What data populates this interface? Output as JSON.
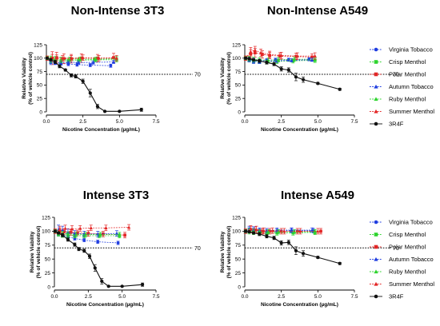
{
  "legend": [
    {
      "name": "Virginia Tobacco",
      "color": "#1f3de0",
      "marker": "circle"
    },
    {
      "name": "Crisp Menthol",
      "color": "#2ed42e",
      "marker": "square"
    },
    {
      "name": "Polar Menthol",
      "color": "#e32626",
      "marker": "square"
    },
    {
      "name": "Autumn Tobacco",
      "color": "#1f3de0",
      "marker": "triangle"
    },
    {
      "name": "Ruby Menthol",
      "color": "#2ed42e",
      "marker": "triangle"
    },
    {
      "name": "Summer Menthol",
      "color": "#e32626",
      "marker": "triangle"
    },
    {
      "name": "3R4F",
      "color": "#111111",
      "marker": "circle"
    }
  ],
  "chart_data": [
    {
      "type": "scatter",
      "title": "Non-Intense 3T3",
      "xlabel": "Nicotine Concentration (µg/mL)",
      "ylabel": [
        "Relative Viability",
        "(% of vehicle control)"
      ],
      "xlim": [
        0,
        7.5
      ],
      "ylim": [
        0,
        125
      ],
      "xticks": [
        "0.0",
        "2.5",
        "5.0",
        "7.5"
      ],
      "yticks": [
        "0",
        "25",
        "50",
        "75",
        "100",
        "125"
      ],
      "reference_line": {
        "y": 70,
        "label": "70"
      },
      "series": [
        {
          "name": "Virginia Tobacco",
          "x": [
            0.05,
            0.3,
            0.6,
            1.0,
            1.5,
            2.1,
            3.0,
            4.4
          ],
          "y": [
            100,
            95,
            91,
            90,
            89,
            88,
            87,
            86
          ],
          "err": [
            3,
            4,
            3,
            3,
            3,
            3,
            3,
            3
          ]
        },
        {
          "name": "Crisp Menthol",
          "x": [
            0.05,
            0.3,
            0.6,
            1.0,
            1.5,
            2.2,
            3.3,
            4.8
          ],
          "y": [
            100,
            98,
            96,
            95,
            95,
            96,
            97,
            97
          ],
          "err": [
            3,
            6,
            5,
            5,
            5,
            4,
            4,
            4
          ]
        },
        {
          "name": "Polar Menthol",
          "x": [
            0.05,
            0.4,
            0.7,
            1.2,
            1.7,
            2.4,
            3.5,
            4.6
          ],
          "y": [
            100,
            100,
            101,
            99,
            99,
            100,
            100,
            101
          ],
          "err": [
            4,
            12,
            10,
            9,
            8,
            8,
            7,
            8
          ]
        },
        {
          "name": "Autumn Tobacco",
          "x": [
            0.05,
            0.3,
            0.6,
            1.0,
            1.5,
            2.2,
            3.2,
            4.6
          ],
          "y": [
            100,
            92,
            92,
            91,
            92,
            92,
            92,
            93
          ],
          "err": [
            3,
            4,
            3,
            3,
            3,
            3,
            3,
            3
          ]
        },
        {
          "name": "Ruby Menthol",
          "x": [
            0.05,
            0.3,
            0.6,
            1.0,
            1.6,
            2.3,
            3.4,
            4.8
          ],
          "y": [
            100,
            97,
            98,
            97,
            98,
            98,
            98,
            99
          ],
          "err": [
            3,
            5,
            5,
            5,
            4,
            4,
            4,
            4
          ]
        },
        {
          "name": "Summer Menthol",
          "x": [
            0.05,
            0.4,
            0.7,
            1.1,
            1.7,
            2.5,
            3.6,
            4.8
          ],
          "y": [
            100,
            101,
            100,
            100,
            100,
            101,
            100,
            100
          ],
          "err": [
            4,
            6,
            6,
            5,
            5,
            5,
            5,
            5
          ]
        },
        {
          "name": "3R4F",
          "x": [
            0.05,
            0.3,
            0.6,
            0.9,
            1.3,
            1.7,
            2.0,
            2.5,
            3.0,
            3.5,
            4.0,
            5.0,
            6.5
          ],
          "y": [
            100,
            97,
            93,
            85,
            78,
            68,
            66,
            57,
            35,
            10,
            1,
            1,
            4
          ],
          "err": [
            2,
            2,
            3,
            3,
            2,
            3,
            3,
            4,
            7,
            4,
            1,
            1,
            3
          ]
        }
      ]
    },
    {
      "type": "scatter",
      "title": "Non-Intense A549",
      "xlabel": "Nicotine Concentration (µg/mL)",
      "ylabel": [
        "Relative Viability",
        "(% of vehicle control)"
      ],
      "xlim": [
        0,
        7.5
      ],
      "ylim": [
        0,
        125
      ],
      "xticks": [
        "0.0",
        "2.5",
        "5.0",
        "7.5"
      ],
      "yticks": [
        "0",
        "25",
        "50",
        "75",
        "100",
        "125"
      ],
      "reference_line": {
        "y": 70,
        "label": "70"
      },
      "series": [
        {
          "name": "Virginia Tobacco",
          "x": [
            0.05,
            0.3,
            0.6,
            1.0,
            1.5,
            2.1,
            3.0,
            4.4
          ],
          "y": [
            100,
            98,
            96,
            95,
            96,
            97,
            97,
            98
          ],
          "err": [
            3,
            4,
            4,
            3,
            3,
            3,
            3,
            3
          ]
        },
        {
          "name": "Crisp Menthol",
          "x": [
            0.05,
            0.3,
            0.6,
            1.0,
            1.5,
            2.2,
            3.3,
            4.8
          ],
          "y": [
            100,
            98,
            95,
            94,
            93,
            94,
            95,
            96
          ],
          "err": [
            3,
            5,
            4,
            4,
            4,
            4,
            4,
            4
          ]
        },
        {
          "name": "Polar Menthol",
          "x": [
            0.05,
            0.4,
            0.7,
            1.2,
            1.7,
            2.4,
            3.5,
            4.6
          ],
          "y": [
            100,
            108,
            110,
            107,
            105,
            104,
            103,
            102
          ],
          "err": [
            4,
            8,
            8,
            7,
            6,
            6,
            6,
            6
          ]
        },
        {
          "name": "Autumn Tobacco",
          "x": [
            0.05,
            0.3,
            0.6,
            1.0,
            1.5,
            2.2,
            3.2,
            4.6
          ],
          "y": [
            100,
            97,
            94,
            93,
            94,
            95,
            96,
            97
          ],
          "err": [
            3,
            4,
            4,
            3,
            3,
            3,
            3,
            3
          ]
        },
        {
          "name": "Ruby Menthol",
          "x": [
            0.05,
            0.3,
            0.6,
            1.0,
            1.6,
            2.3,
            3.4,
            4.8
          ],
          "y": [
            100,
            99,
            98,
            97,
            96,
            97,
            98,
            98
          ],
          "err": [
            3,
            4,
            4,
            4,
            4,
            4,
            4,
            4
          ]
        },
        {
          "name": "Summer Menthol",
          "x": [
            0.05,
            0.4,
            0.7,
            1.1,
            1.7,
            2.5,
            3.6,
            4.8
          ],
          "y": [
            100,
            112,
            115,
            110,
            107,
            105,
            104,
            104
          ],
          "err": [
            4,
            8,
            7,
            7,
            6,
            6,
            6,
            6
          ]
        },
        {
          "name": "3R4F",
          "x": [
            0.05,
            0.3,
            0.6,
            1.0,
            1.5,
            2.0,
            2.5,
            3.0,
            3.5,
            4.0,
            5.0,
            6.5
          ],
          "y": [
            100,
            99,
            97,
            95,
            92,
            89,
            80,
            78,
            65,
            60,
            53,
            42
          ],
          "err": [
            2,
            2,
            2,
            3,
            3,
            3,
            4,
            4,
            7,
            5,
            2,
            2
          ]
        }
      ]
    },
    {
      "type": "scatter",
      "title": "Intense 3T3",
      "xlabel": "Nicotine Concentration (µg/mL)",
      "ylabel": [
        "Relative Viability",
        "(% of vehicle control)"
      ],
      "xlim": [
        0,
        7.5
      ],
      "ylim": [
        0,
        125
      ],
      "xticks": [
        "0.0",
        "2.5",
        "5.0",
        "7.5"
      ],
      "yticks": [
        "0",
        "25",
        "50",
        "75",
        "100",
        "125"
      ],
      "reference_line": {
        "y": 70,
        "label": "70"
      },
      "series": [
        {
          "name": "Virginia Tobacco",
          "x": [
            0.05,
            0.3,
            0.6,
            1.0,
            1.5,
            2.2,
            3.2,
            4.7
          ],
          "y": [
            100,
            95,
            93,
            90,
            87,
            84,
            81,
            79
          ],
          "err": [
            3,
            3,
            3,
            3,
            3,
            3,
            3,
            3
          ]
        },
        {
          "name": "Crisp Menthol",
          "x": [
            0.05,
            0.3,
            0.6,
            1.0,
            1.5,
            2.2,
            3.3,
            4.8
          ],
          "y": [
            100,
            95,
            93,
            93,
            92,
            92,
            92,
            92
          ],
          "err": [
            3,
            4,
            4,
            4,
            4,
            4,
            4,
            4
          ]
        },
        {
          "name": "Polar Menthol",
          "x": [
            0.05,
            0.4,
            0.7,
            1.2,
            1.7,
            2.5,
            3.6,
            5.2
          ],
          "y": [
            100,
            100,
            99,
            98,
            97,
            96,
            95,
            93
          ],
          "err": [
            4,
            6,
            5,
            5,
            5,
            5,
            5,
            5
          ]
        },
        {
          "name": "Autumn Tobacco",
          "x": [
            0.05,
            0.3,
            0.6,
            1.0,
            1.5,
            2.2,
            3.2,
            4.6
          ],
          "y": [
            100,
            103,
            102,
            98,
            96,
            95,
            95,
            96
          ],
          "err": [
            3,
            8,
            7,
            6,
            5,
            5,
            5,
            5
          ]
        },
        {
          "name": "Ruby Menthol",
          "x": [
            0.05,
            0.3,
            0.6,
            1.0,
            1.6,
            2.3,
            3.4,
            4.8
          ],
          "y": [
            100,
            98,
            96,
            95,
            94,
            94,
            94,
            94
          ],
          "err": [
            3,
            4,
            4,
            4,
            4,
            4,
            4,
            4
          ]
        },
        {
          "name": "Summer Menthol",
          "x": [
            0.05,
            0.4,
            0.8,
            1.3,
            1.9,
            2.7,
            3.8,
            5.5
          ],
          "y": [
            100,
            103,
            105,
            104,
            105,
            106,
            106,
            107
          ],
          "err": [
            4,
            6,
            6,
            6,
            5,
            5,
            5,
            5
          ]
        },
        {
          "name": "3R4F",
          "x": [
            0.05,
            0.3,
            0.6,
            1.0,
            1.5,
            1.8,
            2.2,
            2.6,
            3.0,
            3.5,
            4.0,
            5.0,
            6.5
          ],
          "y": [
            100,
            97,
            93,
            85,
            76,
            68,
            65,
            55,
            34,
            10,
            1,
            1,
            4
          ],
          "err": [
            2,
            2,
            3,
            3,
            3,
            3,
            3,
            4,
            6,
            5,
            1,
            1,
            3
          ]
        }
      ]
    },
    {
      "type": "scatter",
      "title": "Intense A549",
      "xlabel": "Nicotine Concentration (µg/mL)",
      "ylabel": [
        "Relative Viability",
        "(% of vehicle control)"
      ],
      "xlim": [
        0,
        7.5
      ],
      "ylim": [
        0,
        125
      ],
      "xticks": [
        "0.0",
        "2.5",
        "5.0",
        "7.5"
      ],
      "yticks": [
        "0",
        "25",
        "50",
        "75",
        "100",
        "125"
      ],
      "reference_line": {
        "y": 70,
        "label": "70"
      },
      "series": [
        {
          "name": "Virginia Tobacco",
          "x": [
            0.05,
            0.3,
            0.6,
            1.0,
            1.5,
            2.2,
            3.2,
            4.7
          ],
          "y": [
            100,
            102,
            101,
            100,
            99,
            100,
            101,
            101
          ],
          "err": [
            3,
            4,
            4,
            4,
            4,
            4,
            4,
            4
          ]
        },
        {
          "name": "Crisp Menthol",
          "x": [
            0.05,
            0.3,
            0.6,
            1.0,
            1.5,
            2.2,
            3.3,
            4.8
          ],
          "y": [
            100,
            99,
            98,
            97,
            96,
            97,
            97,
            98
          ],
          "err": [
            3,
            4,
            4,
            4,
            4,
            4,
            4,
            4
          ]
        },
        {
          "name": "Polar Menthol",
          "x": [
            0.05,
            0.4,
            0.7,
            1.2,
            1.7,
            2.5,
            3.6,
            5.2
          ],
          "y": [
            100,
            103,
            102,
            100,
            100,
            100,
            100,
            100
          ],
          "err": [
            4,
            6,
            6,
            5,
            5,
            5,
            5,
            5
          ]
        },
        {
          "name": "Autumn Tobacco",
          "x": [
            0.05,
            0.3,
            0.6,
            1.0,
            1.5,
            2.2,
            3.2,
            4.6
          ],
          "y": [
            100,
            104,
            103,
            102,
            101,
            102,
            102,
            102
          ],
          "err": [
            3,
            5,
            5,
            4,
            4,
            4,
            4,
            4
          ]
        },
        {
          "name": "Ruby Menthol",
          "x": [
            0.05,
            0.3,
            0.6,
            1.0,
            1.6,
            2.3,
            3.4,
            4.8
          ],
          "y": [
            100,
            101,
            100,
            99,
            99,
            99,
            99,
            99
          ],
          "err": [
            3,
            4,
            4,
            4,
            4,
            4,
            4,
            4
          ]
        },
        {
          "name": "Summer Menthol",
          "x": [
            0.05,
            0.4,
            0.8,
            1.3,
            1.9,
            2.7,
            3.8,
            5.0
          ],
          "y": [
            100,
            104,
            103,
            101,
            101,
            100,
            100,
            100
          ],
          "err": [
            4,
            6,
            6,
            5,
            5,
            5,
            5,
            5
          ]
        },
        {
          "name": "3R4F",
          "x": [
            0.05,
            0.3,
            0.6,
            1.0,
            1.5,
            2.0,
            2.5,
            3.0,
            3.5,
            4.0,
            5.0,
            6.5
          ],
          "y": [
            100,
            99,
            97,
            95,
            91,
            88,
            79,
            80,
            65,
            60,
            53,
            42
          ],
          "err": [
            2,
            2,
            2,
            3,
            3,
            3,
            4,
            4,
            7,
            5,
            2,
            2
          ]
        }
      ]
    }
  ]
}
